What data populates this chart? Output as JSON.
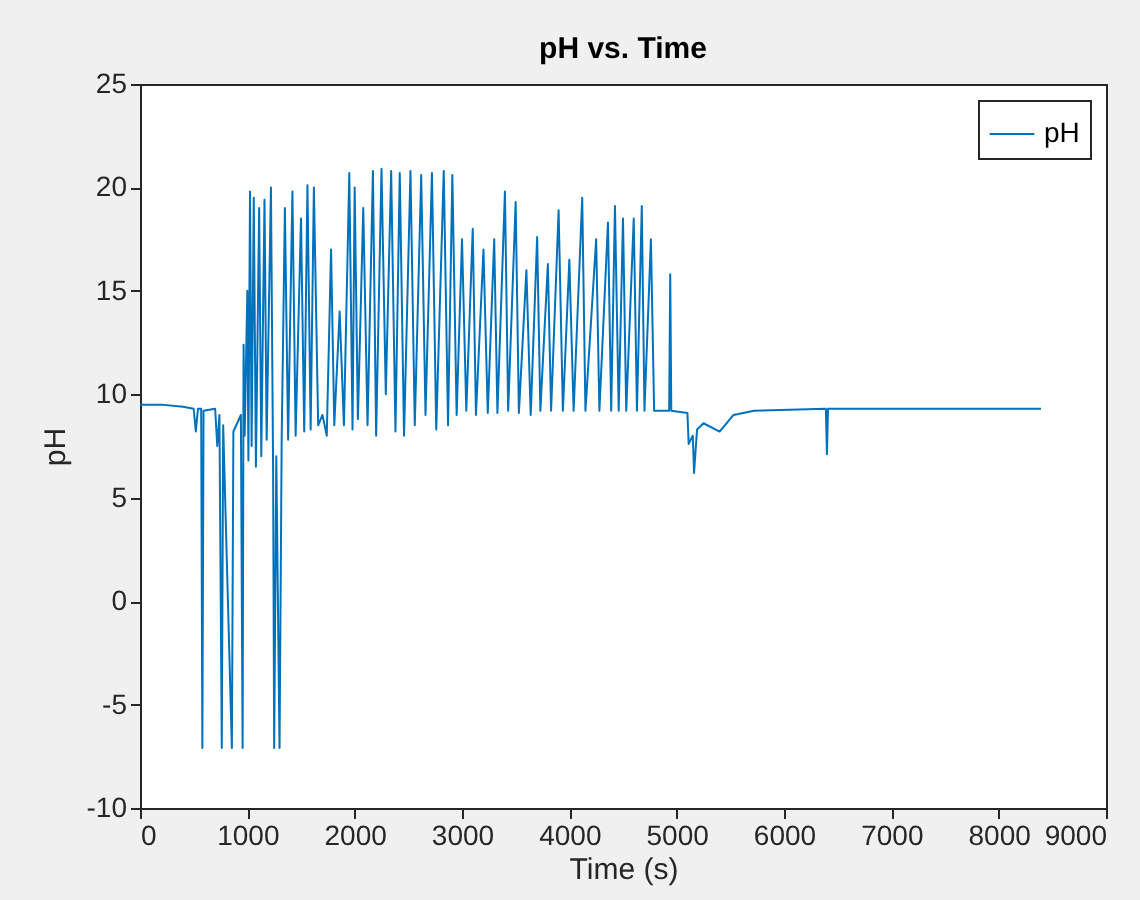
{
  "chart_data": {
    "type": "line",
    "title": "pH vs. Time",
    "xlabel": "Time (s)",
    "ylabel": "pH",
    "xlim": [
      0,
      9000
    ],
    "xticks": [
      0,
      1000,
      2000,
      3000,
      4000,
      5000,
      6000,
      7000,
      8000,
      9000
    ],
    "ylim": [
      -10,
      25
    ],
    "yticks": [
      -10,
      -5,
      0,
      5,
      10,
      15,
      20,
      25
    ],
    "grid": false,
    "legend": "top right",
    "marker": "none",
    "line_style": "solid",
    "series": [
      {
        "name": "pH",
        "color": "#0072bd",
        "x": [
          0,
          200,
          400,
          500,
          520,
          540,
          570,
          581,
          592,
          700,
          720,
          740,
          762,
          775,
          856,
          870,
          940,
          956,
          965,
          975,
          1000,
          1010,
          1025,
          1040,
          1060,
          1080,
          1110,
          1130,
          1160,
          1180,
          1220,
          1240,
          1250,
          1270,
          1300,
          1320,
          1350,
          1380,
          1420,
          1450,
          1500,
          1530,
          1560,
          1590,
          1620,
          1660,
          1700,
          1740,
          1780,
          1810,
          1860,
          1900,
          1950,
          1980,
          2000,
          2030,
          2080,
          2120,
          2170,
          2200,
          2250,
          2290,
          2340,
          2380,
          2420,
          2460,
          2520,
          2560,
          2620,
          2660,
          2720,
          2760,
          2830,
          2870,
          2910,
          2950,
          3000,
          3040,
          3100,
          3130,
          3200,
          3240,
          3300,
          3330,
          3400,
          3430,
          3500,
          3530,
          3600,
          3640,
          3700,
          3730,
          3800,
          3830,
          3900,
          3940,
          4000,
          4040,
          4120,
          4150,
          4250,
          4280,
          4360,
          4390,
          4425,
          4460,
          4500,
          4530,
          4600,
          4630,
          4675,
          4700,
          4760,
          4790,
          4930,
          4940,
          4950,
          5100,
          5112,
          5150,
          5162,
          5190,
          5250,
          5400,
          5530,
          5720,
          6390,
          6400,
          6410,
          8394
        ],
        "values": [
          9.5,
          9.5,
          9.4,
          9.3,
          8.2,
          9.3,
          9.3,
          -7.1,
          9.2,
          9.3,
          7.5,
          9.0,
          -7.1,
          8.5,
          -7.1,
          8.2,
          9.0,
          -7.1,
          12.4,
          8.0,
          15.0,
          6.8,
          19.8,
          7.5,
          19.5,
          6.5,
          19.0,
          7.0,
          19.4,
          7.8,
          20.0,
          6.5,
          -7.1,
          7.0,
          -7.1,
          7.8,
          19.0,
          7.8,
          19.8,
          8.0,
          18.5,
          8.2,
          20.1,
          8.3,
          20.0,
          8.5,
          9.0,
          8.0,
          17.0,
          8.5,
          14.0,
          8.5,
          20.7,
          8.3,
          20.0,
          8.8,
          19.0,
          8.5,
          20.8,
          8.0,
          20.9,
          10.0,
          20.8,
          8.2,
          20.7,
          8.0,
          20.8,
          8.5,
          20.6,
          9.0,
          20.7,
          8.3,
          20.8,
          8.5,
          20.6,
          9.0,
          17.5,
          9.2,
          18.0,
          9.0,
          17.0,
          9.1,
          17.5,
          9.1,
          19.8,
          9.2,
          19.3,
          9.1,
          16.0,
          9.0,
          17.6,
          9.2,
          16.3,
          9.2,
          18.9,
          9.2,
          16.5,
          9.2,
          19.5,
          9.2,
          17.5,
          9.2,
          18.3,
          9.2,
          19.1,
          9.2,
          18.5,
          9.2,
          18.5,
          9.2,
          19.1,
          9.2,
          17.5,
          9.2,
          9.2,
          15.8,
          9.2,
          9.1,
          7.6,
          8.0,
          6.2,
          8.3,
          8.6,
          8.2,
          9.0,
          9.2,
          9.3,
          7.1,
          9.3,
          9.3
        ]
      }
    ]
  }
}
